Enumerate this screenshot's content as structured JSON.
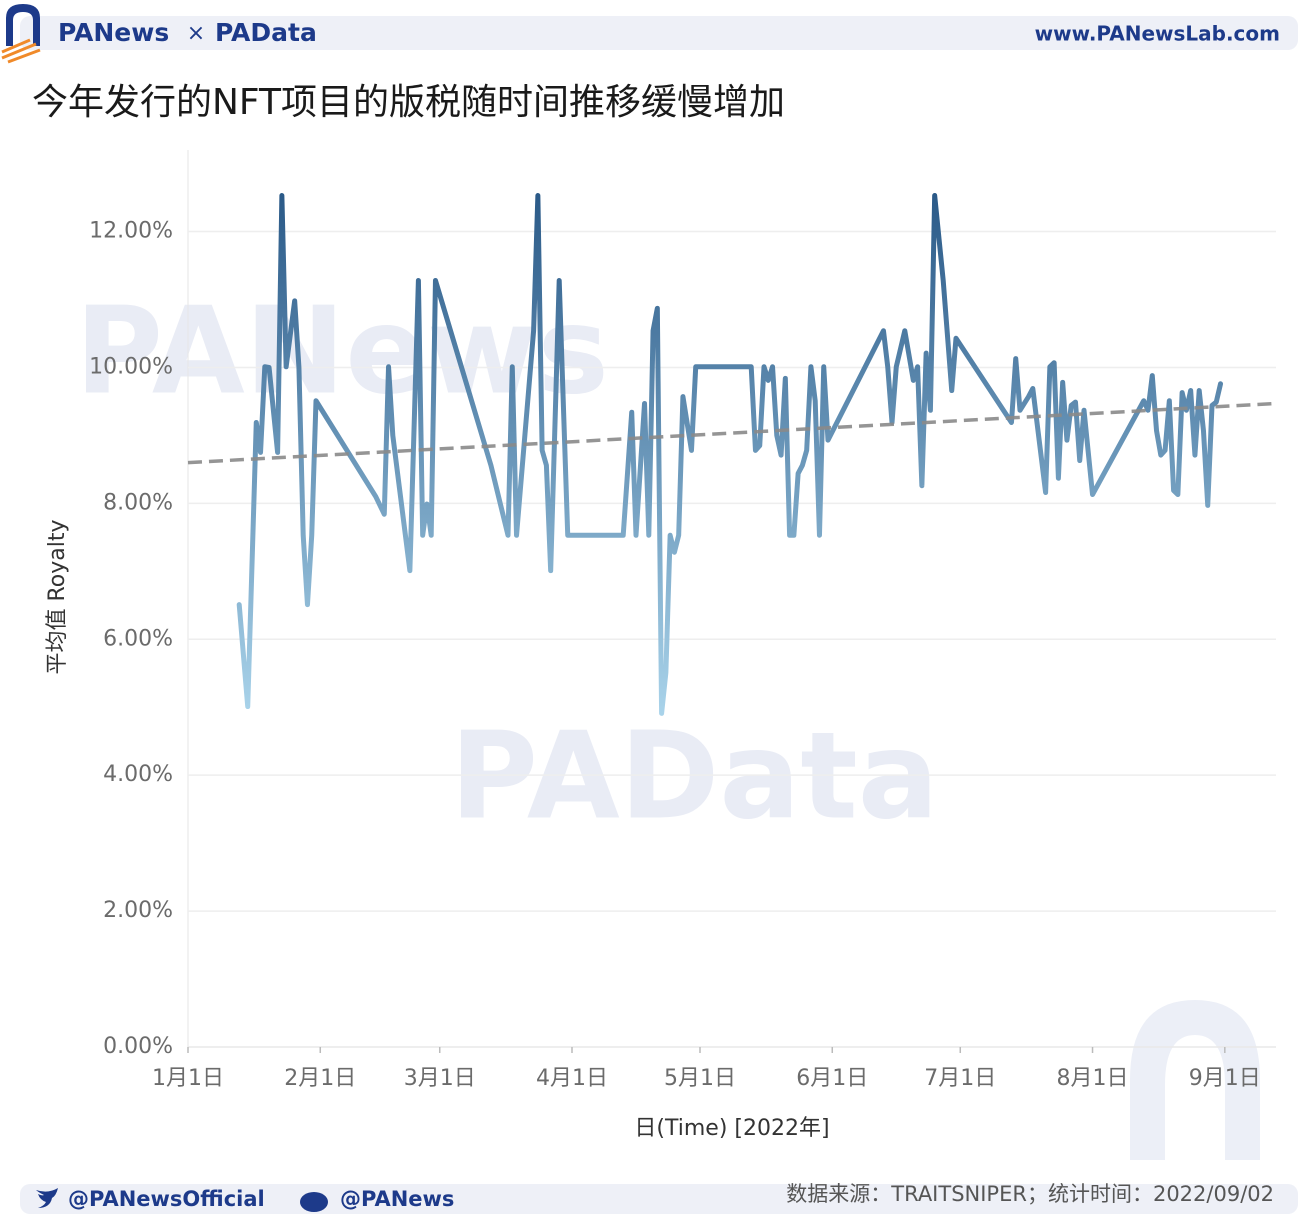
{
  "header": {
    "brand_left": "PANews",
    "brand_sep": "×",
    "brand_right": "PAData",
    "url": "www.PANewsLab.com"
  },
  "watermarks": [
    "PANews",
    "PAData"
  ],
  "chart_data": {
    "type": "line",
    "title": "今年发行的NFT项目的版税随时间推移缓慢增加",
    "x_label": "日(Time) [2022年]",
    "y_label": "平均值 Royalty",
    "xlim": [
      "2022-01-01",
      "2022-09-13"
    ],
    "xticks": [
      {
        "value": "2022-01-01",
        "label": "1月1日"
      },
      {
        "value": "2022-02-01",
        "label": "2月1日"
      },
      {
        "value": "2022-03-01",
        "label": "3月1日"
      },
      {
        "value": "2022-04-01",
        "label": "4月1日"
      },
      {
        "value": "2022-05-01",
        "label": "5月1日"
      },
      {
        "value": "2022-06-01",
        "label": "6月1日"
      },
      {
        "value": "2022-07-01",
        "label": "7月1日"
      },
      {
        "value": "2022-08-01",
        "label": "8月1日"
      },
      {
        "value": "2022-09-01",
        "label": "9月1日"
      }
    ],
    "ylim": [
      0,
      13.2
    ],
    "yticks": [
      {
        "value": 0,
        "label": "0.00%"
      },
      {
        "value": 2,
        "label": "2.00%"
      },
      {
        "value": 4,
        "label": "4.00%"
      },
      {
        "value": 6,
        "label": "6.00%"
      },
      {
        "value": 8,
        "label": "8.00%"
      },
      {
        "value": 10,
        "label": "10.00%"
      },
      {
        "value": 12,
        "label": "12.00%"
      }
    ],
    "grid": true,
    "color_low": "#a9d3ea",
    "color_high": "#2b5a88",
    "x": [
      "2022-01-13",
      "2022-01-15",
      "2022-01-17",
      "2022-01-18",
      "2022-01-19",
      "2022-01-20",
      "2022-01-22",
      "2022-01-23",
      "2022-01-24",
      "2022-01-26",
      "2022-01-27",
      "2022-01-28",
      "2022-01-29",
      "2022-01-30",
      "2022-01-31",
      "2022-02-14",
      "2022-02-16",
      "2022-02-17",
      "2022-02-18",
      "2022-02-22",
      "2022-02-24",
      "2022-02-25",
      "2022-02-26",
      "2022-02-27",
      "2022-02-28",
      "2022-03-13",
      "2022-03-17",
      "2022-03-18",
      "2022-03-19",
      "2022-03-23",
      "2022-03-24",
      "2022-03-25",
      "2022-03-26",
      "2022-03-27",
      "2022-03-29",
      "2022-03-31",
      "2022-04-13",
      "2022-04-15",
      "2022-04-16",
      "2022-04-18",
      "2022-04-19",
      "2022-04-20",
      "2022-04-21",
      "2022-04-22",
      "2022-04-23",
      "2022-04-24",
      "2022-04-25",
      "2022-04-26",
      "2022-04-27",
      "2022-04-29",
      "2022-04-30",
      "2022-05-13",
      "2022-05-14",
      "2022-05-15",
      "2022-05-16",
      "2022-05-17",
      "2022-05-18",
      "2022-05-19",
      "2022-05-20",
      "2022-05-21",
      "2022-05-22",
      "2022-05-23",
      "2022-05-24",
      "2022-05-25",
      "2022-05-26",
      "2022-05-27",
      "2022-05-28",
      "2022-05-29",
      "2022-05-30",
      "2022-05-31",
      "2022-06-13",
      "2022-06-14",
      "2022-06-15",
      "2022-06-16",
      "2022-06-18",
      "2022-06-20",
      "2022-06-21",
      "2022-06-22",
      "2022-06-23",
      "2022-06-24",
      "2022-06-25",
      "2022-06-27",
      "2022-06-29",
      "2022-06-30",
      "2022-07-13",
      "2022-07-14",
      "2022-07-15",
      "2022-07-17",
      "2022-07-18",
      "2022-07-21",
      "2022-07-22",
      "2022-07-23",
      "2022-07-24",
      "2022-07-25",
      "2022-07-26",
      "2022-07-27",
      "2022-07-28",
      "2022-07-29",
      "2022-07-30",
      "2022-08-01",
      "2022-08-13",
      "2022-08-14",
      "2022-08-15",
      "2022-08-16",
      "2022-08-17",
      "2022-08-18",
      "2022-08-19",
      "2022-08-20",
      "2022-08-21",
      "2022-08-22",
      "2022-08-23",
      "2022-08-24",
      "2022-08-25",
      "2022-08-26",
      "2022-08-27",
      "2022-08-28",
      "2022-08-29",
      "2022-08-30",
      "2022-08-31"
    ],
    "values": [
      6.51,
      5.01,
      9.19,
      8.75,
      10.01,
      10.0,
      8.75,
      12.53,
      10.01,
      10.98,
      10.0,
      7.53,
      6.51,
      7.53,
      9.51,
      8.1,
      7.84,
      10.01,
      9.0,
      7.01,
      11.28,
      7.53,
      7.99,
      7.53,
      11.28,
      8.56,
      7.53,
      10.01,
      7.53,
      10.54,
      12.53,
      8.78,
      8.56,
      7.01,
      11.28,
      7.53,
      7.53,
      9.34,
      7.53,
      9.47,
      7.53,
      10.54,
      10.87,
      4.91,
      5.51,
      7.53,
      7.28,
      7.53,
      9.57,
      8.78,
      10.01,
      10.01,
      8.78,
      8.85,
      10.01,
      9.81,
      10.01,
      9.0,
      8.71,
      9.84,
      7.53,
      7.53,
      8.44,
      8.56,
      8.78,
      10.01,
      9.51,
      7.53,
      10.01,
      8.93,
      10.54,
      10.01,
      9.19,
      10.01,
      10.54,
      9.81,
      10.01,
      8.26,
      10.21,
      9.37,
      12.53,
      11.28,
      9.66,
      10.43,
      9.19,
      10.13,
      9.37,
      9.57,
      9.69,
      8.16,
      10.01,
      10.07,
      8.37,
      9.78,
      8.93,
      9.44,
      9.49,
      8.63,
      9.37,
      8.13,
      9.51,
      9.37,
      9.88,
      9.07,
      8.71,
      8.78,
      9.51,
      8.19,
      8.13,
      9.63,
      9.37,
      9.66,
      8.71,
      9.66,
      9.07,
      7.97,
      9.44,
      9.49,
      9.76
    ],
    "trend": {
      "x": [
        "2022-01-01",
        "2022-09-13"
      ],
      "values": [
        8.6,
        9.47
      ],
      "color": "#8a8a8a"
    }
  },
  "footer": {
    "twitter": "@PANewsOfficial",
    "weibo": "@PANews",
    "source": "数据来源：TRAITSNIPER；统计时间：2022/09/02"
  }
}
